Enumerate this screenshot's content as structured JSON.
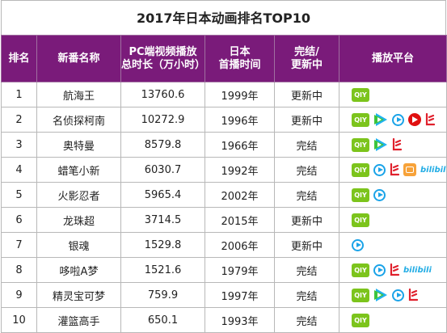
{
  "title": "2017年日本动画排名TOP10",
  "headers": {
    "rank": "排名",
    "name": "新番名称",
    "duration_line1": "PC端视频播放",
    "duration_line2": "总时长（万小时）",
    "year_line1": "日本",
    "year_line2": "首播时间",
    "status_line1": "完结/",
    "status_line2": "更新中",
    "platform": "播放平台"
  },
  "platform_legend": {
    "iqiyi": "iQIYI",
    "tencent": "tencent-video",
    "youku": "youku",
    "mango": "mango-tv",
    "letv": "letv",
    "bilibili": "bilibili"
  },
  "rows": [
    {
      "rank": "1",
      "name": "航海王",
      "duration": "13760.6",
      "year": "1999年",
      "status": "更新中",
      "platforms": [
        "iqiyi"
      ]
    },
    {
      "rank": "2",
      "name": "名侦探柯南",
      "duration": "10272.9",
      "year": "1996年",
      "status": "更新中",
      "platforms": [
        "iqiyi",
        "tencent",
        "youku",
        "mango",
        "letv"
      ]
    },
    {
      "rank": "3",
      "name": "奥特曼",
      "duration": "8579.8",
      "year": "1966年",
      "status": "完结",
      "platforms": [
        "iqiyi",
        "tencent",
        "letv"
      ]
    },
    {
      "rank": "4",
      "name": "蜡笔小新",
      "duration": "6030.7",
      "year": "1992年",
      "status": "完结",
      "platforms": [
        "iqiyi",
        "youku",
        "letv",
        "bilibox",
        "bilitext"
      ]
    },
    {
      "rank": "5",
      "name": "火影忍者",
      "duration": "5965.4",
      "year": "2002年",
      "status": "完结",
      "platforms": [
        "iqiyi",
        "youku"
      ]
    },
    {
      "rank": "6",
      "name": "龙珠超",
      "duration": "3714.5",
      "year": "2015年",
      "status": "更新中",
      "platforms": [
        "iqiyi"
      ]
    },
    {
      "rank": "7",
      "name": "银魂",
      "duration": "1529.8",
      "year": "2006年",
      "status": "更新中",
      "platforms": [
        "youku"
      ]
    },
    {
      "rank": "8",
      "name": "哆啦A梦",
      "duration": "1521.6",
      "year": "1979年",
      "status": "完结",
      "platforms": [
        "iqiyi",
        "youku",
        "letv",
        "bilitext"
      ]
    },
    {
      "rank": "9",
      "name": "精灵宝可梦",
      "duration": "759.9",
      "year": "1997年",
      "status": "完结",
      "platforms": [
        "iqiyi",
        "tencent",
        "youku",
        "letv"
      ]
    },
    {
      "rank": "10",
      "name": "灌篮高手",
      "duration": "650.1",
      "year": "1993年",
      "status": "完结",
      "platforms": [
        "iqiyi"
      ]
    }
  ],
  "bilibili_text": "bilibili",
  "colors": {
    "header_bg": "#7a1b7a",
    "iqiyi": "#7cc41c",
    "youku": "#1aa3e8",
    "mango": "#e01010",
    "letv": "#e0202c",
    "bilibili": "#23ade5"
  }
}
